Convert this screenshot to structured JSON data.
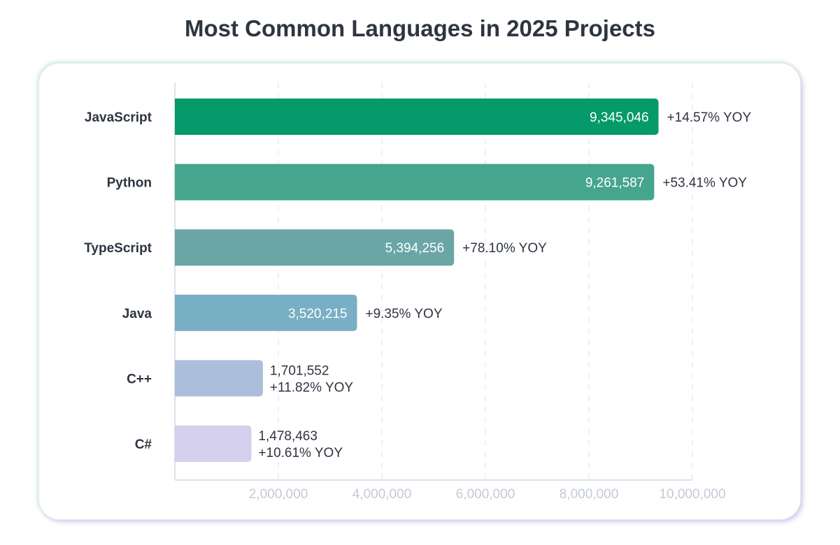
{
  "chart_data": {
    "type": "bar",
    "orientation": "horizontal",
    "title": "Most Common Languages in 2025 Projects",
    "xlabel": "",
    "ylabel": "",
    "xlim": [
      0,
      10000000
    ],
    "grid": "vertical dashed",
    "xticks": [
      "2,000,000",
      "4,000,000",
      "6,000,000",
      "8,000,000",
      "10,000,000"
    ],
    "tick_values": [
      2000000,
      4000000,
      6000000,
      8000000,
      10000000
    ],
    "categories": [
      "JavaScript",
      "Python",
      "TypeScript",
      "Java",
      "C++",
      "C#"
    ],
    "values": [
      9345046,
      9261587,
      5394256,
      3520215,
      1701552,
      1478463
    ],
    "value_labels": [
      "9,345,046",
      "9,261,587",
      "5,394,256",
      "3,520,215",
      "1,701,552",
      "1,478,463"
    ],
    "annotations": [
      "+14.57% YOY",
      "+53.41% YOY",
      "+78.10% YOY",
      "+9.35% YOY",
      "+11.82% YOY",
      "+10.61% YOY"
    ],
    "colors": [
      "#069a6a",
      "#45a68d",
      "#6aa6a6",
      "#78afc4",
      "#abbfdc",
      "#d3cfec"
    ]
  }
}
